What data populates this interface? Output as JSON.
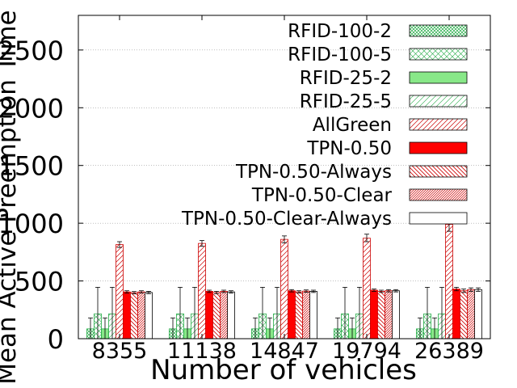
{
  "chart_data": {
    "type": "bar",
    "xlabel": "Number of vehicles",
    "ylabel": "Mean Active Preemption Time (s)",
    "ylim": [
      0,
      2800
    ],
    "yticks": [
      0,
      500,
      1000,
      1500,
      2000,
      2500
    ],
    "grid": true,
    "legend_position": "top-right",
    "categories": [
      "8355",
      "11138",
      "14847",
      "19794",
      "26389"
    ],
    "series": [
      {
        "name": "RFID-100-2",
        "pattern": "crosshatch-dense",
        "color": "#22aa44",
        "values": [
          85,
          85,
          85,
          85,
          85
        ],
        "err_low": [
          85,
          85,
          85,
          85,
          85
        ],
        "err_high": [
          95,
          95,
          95,
          95,
          95
        ]
      },
      {
        "name": "RFID-100-5",
        "pattern": "crosshatch-sparse",
        "color": "#22aa44",
        "values": [
          215,
          215,
          215,
          215,
          215
        ],
        "err_low": [
          215,
          215,
          215,
          215,
          215
        ],
        "err_high": [
          230,
          230,
          230,
          230,
          230
        ]
      },
      {
        "name": "RFID-25-2",
        "pattern": "solid",
        "color": "#88e888",
        "values": [
          85,
          85,
          85,
          85,
          85
        ],
        "err_low": [
          85,
          85,
          85,
          85,
          85
        ],
        "err_high": [
          95,
          95,
          95,
          95,
          95
        ]
      },
      {
        "name": "RFID-25-5",
        "pattern": "diag-sparse",
        "color": "#22aa44",
        "values": [
          215,
          215,
          215,
          215,
          215
        ],
        "err_low": [
          215,
          215,
          215,
          215,
          215
        ],
        "err_high": [
          230,
          230,
          230,
          230,
          230
        ]
      },
      {
        "name": "AllGreen",
        "pattern": "diag-up",
        "color": "#cc0000",
        "values": [
          815,
          825,
          860,
          870,
          990
        ],
        "err_low": [
          25,
          25,
          30,
          30,
          60
        ],
        "err_high": [
          25,
          25,
          30,
          35,
          60
        ]
      },
      {
        "name": "TPN-0.50",
        "pattern": "solid",
        "color": "#ff0000",
        "values": [
          405,
          410,
          415,
          420,
          430
        ],
        "err_low": [
          10,
          10,
          10,
          10,
          15
        ],
        "err_high": [
          10,
          10,
          10,
          10,
          15
        ]
      },
      {
        "name": "TPN-0.50-Always",
        "pattern": "diag-down",
        "color": "#cc0000",
        "values": [
          398,
          400,
          405,
          410,
          415
        ],
        "err_low": [
          10,
          10,
          10,
          10,
          15
        ],
        "err_high": [
          10,
          10,
          10,
          10,
          15
        ]
      },
      {
        "name": "TPN-0.50-Clear",
        "pattern": "diag-up-dense",
        "color": "#cc0000",
        "values": [
          405,
          410,
          412,
          415,
          425
        ],
        "err_low": [
          10,
          10,
          10,
          10,
          15
        ],
        "err_high": [
          10,
          10,
          10,
          10,
          15
        ]
      },
      {
        "name": "TPN-0.50-Clear-Always",
        "pattern": "empty",
        "color": "#000000",
        "values": [
          400,
          405,
          410,
          415,
          425
        ],
        "err_low": [
          10,
          10,
          10,
          10,
          15
        ],
        "err_high": [
          10,
          10,
          10,
          10,
          15
        ]
      }
    ],
    "tick_labels_y": [
      "0",
      "500",
      "1000",
      "1500",
      "2000",
      "2500"
    ]
  }
}
